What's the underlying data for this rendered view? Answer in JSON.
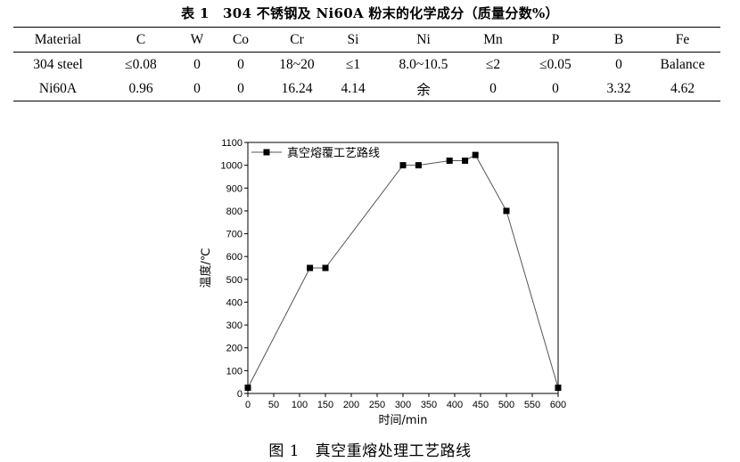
{
  "table": {
    "caption": "表 1　304 不锈钢及 Ni60A 粉末的化学成分（质量分数%）",
    "headers": [
      "Material",
      "C",
      "W",
      "Co",
      "Cr",
      "Si",
      "Ni",
      "Mn",
      "P",
      "B",
      "Fe"
    ],
    "rows": [
      [
        "304 steel",
        "≤0.08",
        "0",
        "0",
        "18~20",
        "≤1",
        "8.0~10.5",
        "≤2",
        "≤0.05",
        "0",
        "Balance"
      ],
      [
        "Ni60A",
        "0.96",
        "0",
        "0",
        "16.24",
        "4.14",
        "余",
        "0",
        "0",
        "3.32",
        "4.62"
      ]
    ]
  },
  "figure": {
    "caption": "图 1　真空重熔处理工艺路线"
  },
  "chart_data": {
    "type": "line",
    "xlabel": "时间/min",
    "ylabel": "温度/℃",
    "xlim": [
      0,
      600
    ],
    "ylim": [
      0,
      1100
    ],
    "xticks": [
      0,
      50,
      100,
      150,
      200,
      250,
      300,
      350,
      400,
      450,
      500,
      550,
      600
    ],
    "yticks": [
      0,
      100,
      200,
      300,
      400,
      500,
      600,
      700,
      800,
      900,
      1000,
      1100
    ],
    "grid": false,
    "legend_position": "top-left",
    "series": [
      {
        "name": "真空熔覆工艺路线",
        "x": [
          0,
          120,
          150,
          300,
          330,
          390,
          420,
          440,
          500,
          600
        ],
        "y": [
          25,
          550,
          550,
          1000,
          1000,
          1020,
          1020,
          1045,
          800,
          25
        ]
      }
    ]
  }
}
